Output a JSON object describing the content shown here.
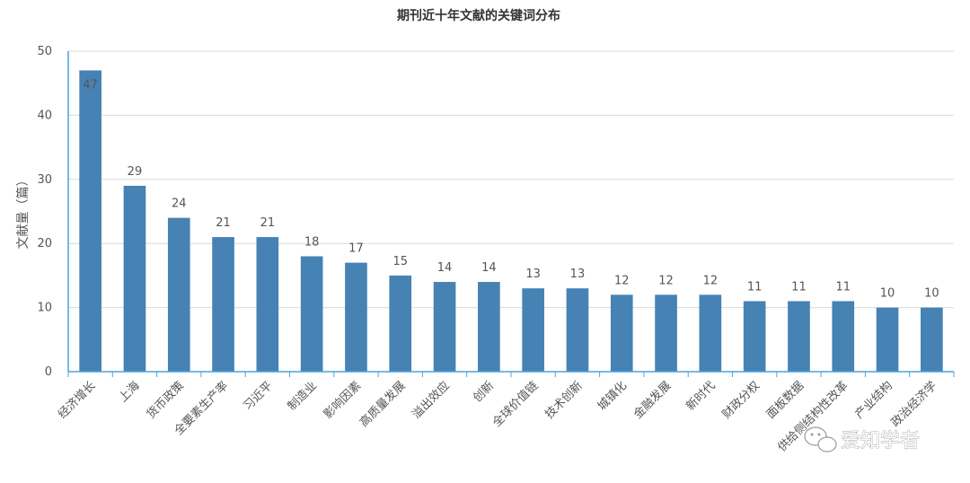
{
  "chart_data": {
    "type": "bar",
    "title": "期刊近十年文献的关键词分布",
    "ylabel": "文献量（篇）",
    "xlabel": "",
    "ylim": [
      0,
      50
    ],
    "yticks": [
      0,
      10,
      20,
      30,
      40,
      50
    ],
    "grid": true,
    "categories": [
      "经济增长",
      "上海",
      "货币政策",
      "全要素生产率",
      "习近平",
      "制造业",
      "影响因素",
      "高质量发展",
      "溢出效应",
      "创新",
      "全球价值链",
      "技术创新",
      "城镇化",
      "金融发展",
      "新时代",
      "财政分权",
      "面板数据",
      "供给侧结构性改革",
      "产业结构",
      "政治经济学"
    ],
    "values": [
      47,
      29,
      24,
      21,
      21,
      18,
      17,
      15,
      14,
      14,
      13,
      13,
      12,
      12,
      12,
      11,
      11,
      11,
      10,
      10
    ],
    "bar_color": "#4682b4"
  },
  "watermark": {
    "text": "爱知学者",
    "icon": "wechat-icon"
  }
}
